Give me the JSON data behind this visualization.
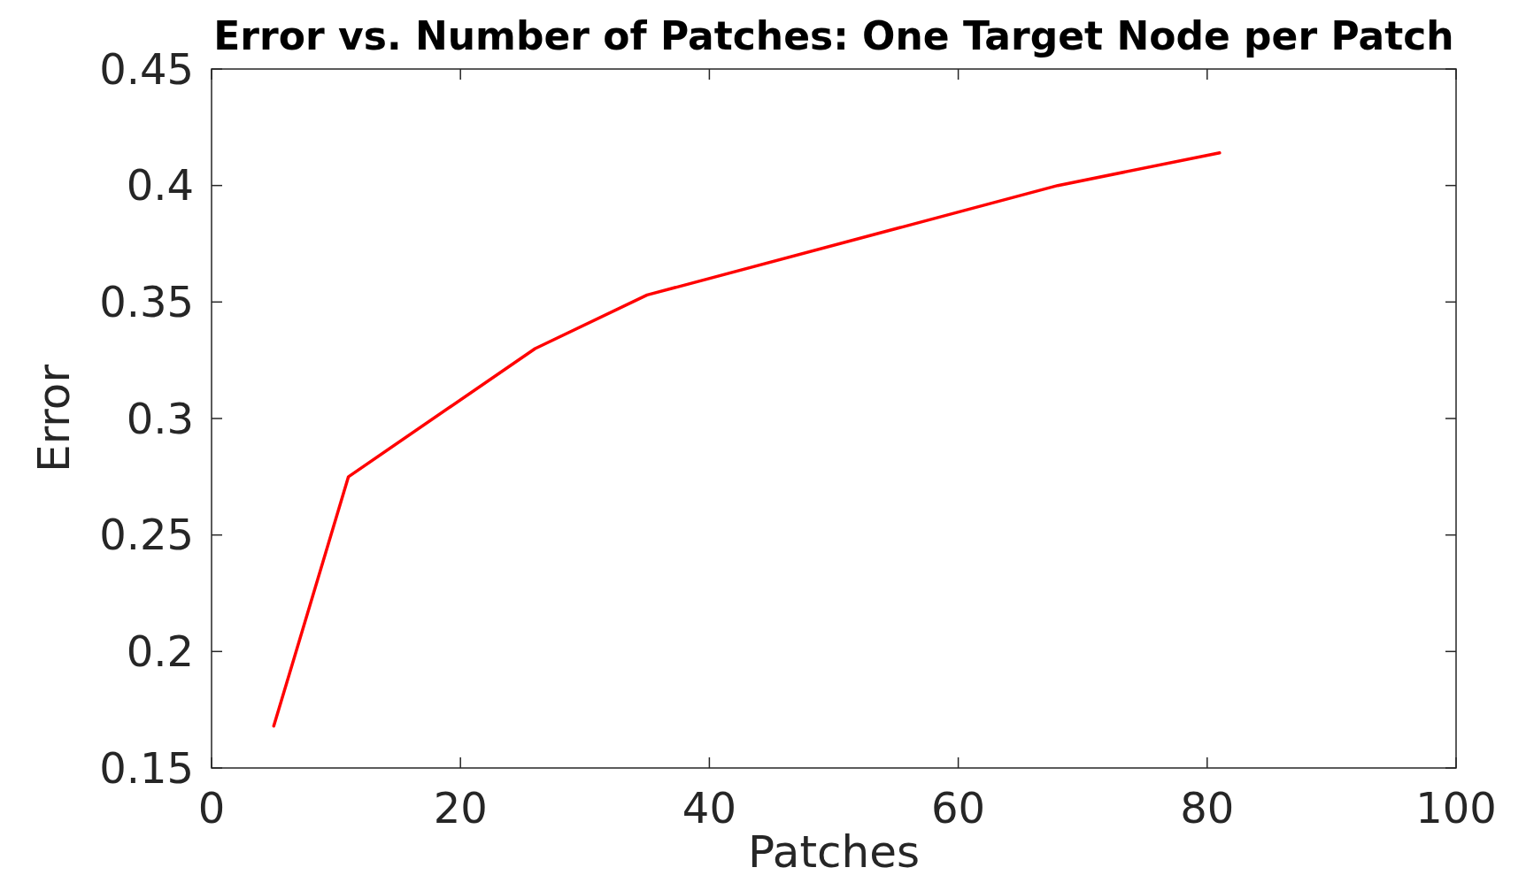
{
  "chart_data": {
    "type": "line",
    "title": "Error vs. Number of Patches: One Target Node per Patch",
    "xlabel": "Patches",
    "ylabel": "Error",
    "series": [
      {
        "color": "#ff0000",
        "x": [
          5,
          11,
          26,
          35,
          68,
          81
        ],
        "values": [
          0.168,
          0.275,
          0.33,
          0.353,
          0.4,
          0.414
        ]
      }
    ],
    "xlim": [
      0,
      100
    ],
    "xticks": [
      0,
      20,
      40,
      60,
      80,
      100
    ],
    "ylim": [
      0.15,
      0.45
    ],
    "yticks": [
      0.15,
      0.2,
      0.25,
      0.3,
      0.35,
      0.4,
      0.45
    ],
    "grid": false,
    "marker": "none",
    "line_style": "solid"
  }
}
